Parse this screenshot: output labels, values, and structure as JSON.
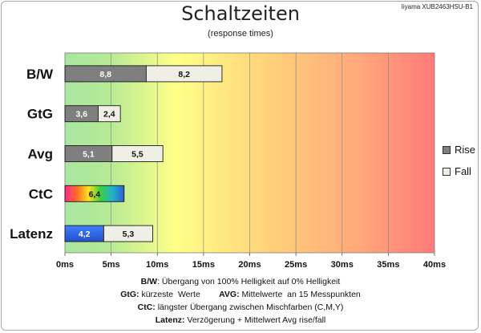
{
  "title": "Schaltzeiten",
  "subtitle": "(response times)",
  "model": "Iiyama XUB2463HSU-B1",
  "legend": [
    {
      "name": "Rise",
      "color": "#7f7f7f"
    },
    {
      "name": "Fall",
      "color": "#efefe6"
    }
  ],
  "chart_data": {
    "type": "bar",
    "orientation": "horizontal",
    "stacked": true,
    "title": "Schaltzeiten",
    "subtitle": "(response times)",
    "categories": [
      "B/W",
      "GtG",
      "Avg",
      "CtC",
      "Latenz"
    ],
    "series": [
      {
        "name": "Rise",
        "values": [
          8.8,
          3.6,
          5.1,
          null,
          null
        ]
      },
      {
        "name": "Fall",
        "values": [
          8.2,
          2.4,
          5.5,
          null,
          null
        ]
      }
    ],
    "extra_bars": [
      {
        "category": "CtC",
        "values": [
          6.4
        ],
        "labels": [
          "6,4"
        ],
        "style": "rainbow"
      },
      {
        "category": "Latenz",
        "values": [
          4.2,
          5.3
        ],
        "labels": [
          "4,2",
          "5,3"
        ],
        "style": "blue-then-fall"
      }
    ],
    "data_labels": {
      "B/W": [
        "8,8",
        "8,2"
      ],
      "GtG": [
        "3,6",
        "2,4"
      ],
      "Avg": [
        "5,1",
        "5,5"
      ]
    },
    "xlim": [
      0,
      40
    ],
    "xticks": [
      0,
      5,
      10,
      15,
      20,
      25,
      30,
      35,
      40
    ],
    "tick_labels": [
      "0ms",
      "5ms",
      "10ms",
      "15ms",
      "20ms",
      "25ms",
      "30ms",
      "35ms",
      "40ms"
    ],
    "background": "gradient green-yellow-orange-red",
    "grid": true,
    "legend_position": "right"
  },
  "notes": [
    {
      "bold": "B/W",
      "text": ":  Übergang von 100% Helligkeit auf 0% Helligkeit"
    },
    {
      "bold": "GtG:",
      "text": " kürzeste  Werte        ",
      "bold2": "AVG:",
      "text2": " Mittelwerte  an 15 Messpunkten"
    },
    {
      "bold": "CtC:",
      "text": " längster Übergang  zwischen Mischfarben (C,M,Y)"
    },
    {
      "bold": "Latenz:",
      "text": " Verzögerung  + Mittelwert Avg rise/fall"
    }
  ]
}
